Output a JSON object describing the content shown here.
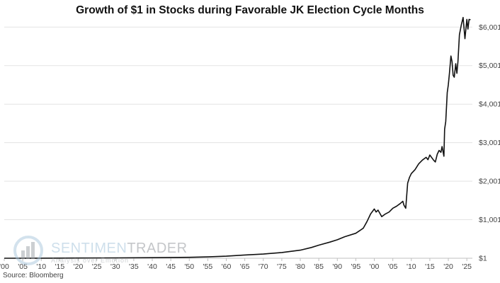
{
  "source": "Source: Bloomberg",
  "watermark": {
    "brand_part1": "SENTIMEN",
    "brand_part2": "TRADER",
    "tagline": "Analysis over Emotion"
  },
  "colors": {
    "line": "#111111",
    "grid": "#e3e3e3",
    "axis": "#bfbfbf",
    "tick_text": "#444444"
  },
  "chart_data": {
    "type": "line",
    "title": "Growth of $1 in Stocks during Favorable JK Election Cycle Months",
    "xlabel": "",
    "ylabel": "",
    "xlim": [
      1900,
      2026.5
    ],
    "ylim": [
      1,
      6300
    ],
    "y_ticks": [
      1,
      1001,
      2001,
      3001,
      4001,
      5001,
      6001
    ],
    "y_tick_labels": [
      "$1",
      "$1,001",
      "$2,001",
      "$3,001",
      "$4,001",
      "$5,001",
      "$6,001"
    ],
    "x_ticks": [
      1900,
      1905,
      1910,
      1915,
      1920,
      1925,
      1930,
      1935,
      1940,
      1945,
      1950,
      1955,
      1960,
      1965,
      1970,
      1975,
      1980,
      1985,
      1990,
      1995,
      2000,
      2005,
      2010,
      2015,
      2020,
      2025
    ],
    "x_tick_labels": [
      "'00",
      "'05",
      "'10",
      "'15",
      "'20",
      "'25",
      "'30",
      "'35",
      "'40",
      "'45",
      "'50",
      "'55",
      "'60",
      "'65",
      "'70",
      "'75",
      "'80",
      "'85",
      "'90",
      "'95",
      "'00",
      "'05",
      "'10",
      "'15",
      "'20",
      "'25"
    ],
    "grid": true,
    "legend": "none",
    "series": [
      {
        "name": "Growth of $1",
        "x": [
          1900,
          1910,
          1920,
          1930,
          1940,
          1950,
          1955,
          1960,
          1965,
          1970,
          1975,
          1980,
          1983,
          1985,
          1988,
          1990,
          1992,
          1995,
          1997,
          1998,
          1999,
          2000,
          2000.5,
          2001,
          2002,
          2003,
          2004,
          2005,
          2006,
          2007,
          2007.7,
          2008,
          2008.5,
          2009,
          2009.5,
          2010,
          2011,
          2012,
          2013,
          2014,
          2014.5,
          2015,
          2016,
          2016.5,
          2017,
          2017.5,
          2018,
          2018.3,
          2018.8,
          2019,
          2019.3,
          2019.7,
          2020,
          2020.3,
          2020.7,
          2021,
          2021.3,
          2021.6,
          2022,
          2022.3,
          2022.6,
          2023,
          2023.5,
          2024,
          2024.5,
          2025,
          2025.3,
          2025.6,
          2026
        ],
        "y": [
          1,
          3,
          6,
          10,
          15,
          25,
          35,
          55,
          85,
          110,
          150,
          210,
          280,
          340,
          420,
          480,
          560,
          650,
          780,
          950,
          1150,
          1280,
          1200,
          1250,
          1080,
          1150,
          1200,
          1300,
          1350,
          1420,
          1480,
          1380,
          1300,
          1950,
          2100,
          2200,
          2300,
          2450,
          2550,
          2620,
          2560,
          2680,
          2550,
          2500,
          2700,
          2800,
          2750,
          2900,
          2650,
          3350,
          3550,
          4300,
          4500,
          4800,
          5250,
          5100,
          4750,
          4700,
          5050,
          4800,
          5100,
          5800,
          6050,
          6250,
          5700,
          6200,
          5950,
          6200,
          6190
        ]
      }
    ]
  }
}
